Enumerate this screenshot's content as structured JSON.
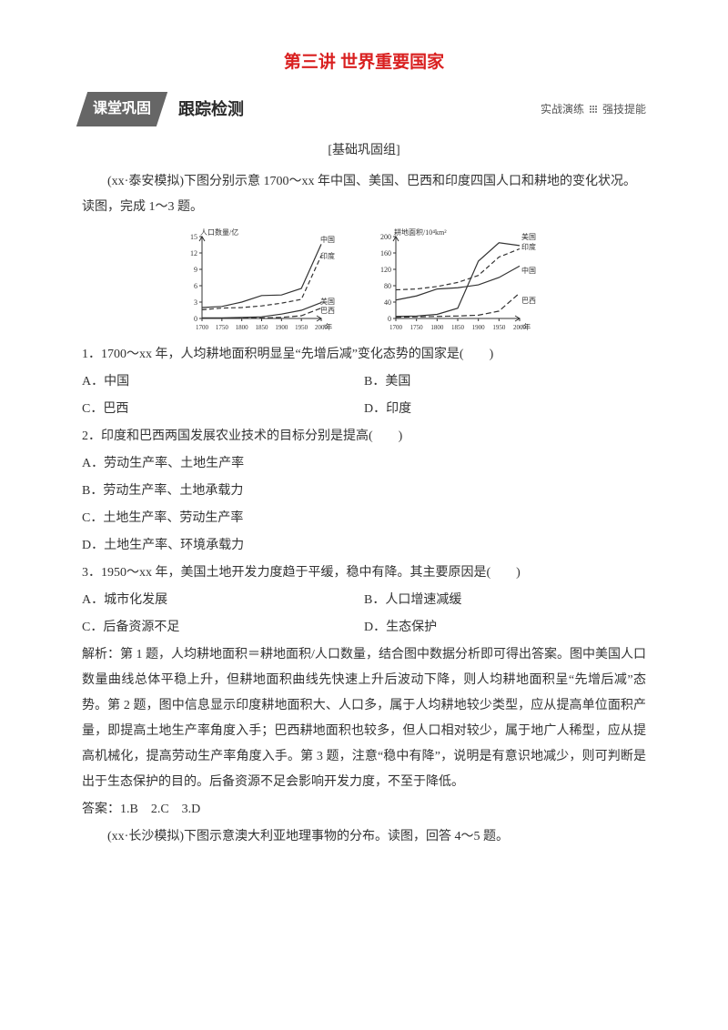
{
  "title": "第三讲 世界重要国家",
  "banner": {
    "tab": "课堂巩固",
    "subtitle": "跟踪检测",
    "right1": "实战演练",
    "right2": "强技提能"
  },
  "section_label": "[基础巩固组]",
  "intro1": "(xx·泰安模拟)下图分别示意 1700～xx 年中国、美国、巴西和印度四国人口和耕地的变化状况。读图，完成 1～3 题。",
  "chart_left": {
    "ylabel": "人口数量/亿",
    "xlabel": "年",
    "x_ticks": [
      "1700",
      "1750",
      "1800",
      "1850",
      "1900",
      "1950",
      "2000"
    ],
    "y_ticks": [
      "0",
      "3",
      "6",
      "9",
      "12",
      "15"
    ],
    "series": [
      {
        "name": "中国",
        "label_x": 158,
        "label_y": 18,
        "dash": "",
        "pts": [
          [
            0,
            2.0
          ],
          [
            1,
            2.2
          ],
          [
            2,
            3.0
          ],
          [
            3,
            4.2
          ],
          [
            4,
            4.3
          ],
          [
            5,
            5.5
          ],
          [
            6,
            13.6
          ]
        ]
      },
      {
        "name": "印度",
        "label_x": 158,
        "label_y": 36,
        "dash": "5,3",
        "pts": [
          [
            0,
            1.6
          ],
          [
            1,
            1.9
          ],
          [
            2,
            2.0
          ],
          [
            3,
            2.3
          ],
          [
            4,
            2.8
          ],
          [
            5,
            3.5
          ],
          [
            6,
            11.5
          ]
        ]
      },
      {
        "name": "美国",
        "label_x": 158,
        "label_y": 86,
        "dash": "",
        "pts": [
          [
            0,
            0.1
          ],
          [
            1,
            0.1
          ],
          [
            2,
            0.2
          ],
          [
            3,
            0.3
          ],
          [
            4,
            0.8
          ],
          [
            5,
            1.5
          ],
          [
            6,
            2.9
          ]
        ]
      },
      {
        "name": "巴西",
        "label_x": 158,
        "label_y": 96,
        "dash": "6,3",
        "pts": [
          [
            0,
            0.05
          ],
          [
            1,
            0.06
          ],
          [
            2,
            0.1
          ],
          [
            3,
            0.1
          ],
          [
            4,
            0.2
          ],
          [
            5,
            0.5
          ],
          [
            6,
            1.9
          ]
        ]
      }
    ],
    "axis_color": "#333",
    "line_color": "#333",
    "font_size": 8
  },
  "chart_right": {
    "ylabel": "耕地面积/10⁴km²",
    "xlabel": "年",
    "x_ticks": [
      "1700",
      "1750",
      "1800",
      "1850",
      "1900",
      "1950",
      "2000"
    ],
    "y_ticks": [
      "0",
      "40",
      "80",
      "120",
      "160",
      "200"
    ],
    "series": [
      {
        "name": "美国",
        "label_x": 166,
        "label_y": 15,
        "dash": "",
        "pts": [
          [
            0,
            5
          ],
          [
            1,
            6
          ],
          [
            2,
            10
          ],
          [
            3,
            25
          ],
          [
            4,
            140
          ],
          [
            5,
            185
          ],
          [
            6,
            178
          ]
        ]
      },
      {
        "name": "印度",
        "label_x": 166,
        "label_y": 26,
        "dash": "5,3",
        "pts": [
          [
            0,
            70
          ],
          [
            1,
            72
          ],
          [
            2,
            78
          ],
          [
            3,
            88
          ],
          [
            4,
            105
          ],
          [
            5,
            150
          ],
          [
            6,
            170
          ]
        ]
      },
      {
        "name": "中国",
        "label_x": 166,
        "label_y": 52,
        "dash": "",
        "pts": [
          [
            0,
            45
          ],
          [
            1,
            55
          ],
          [
            2,
            72
          ],
          [
            3,
            75
          ],
          [
            4,
            82
          ],
          [
            5,
            100
          ],
          [
            6,
            128
          ]
        ]
      },
      {
        "name": "巴西",
        "label_x": 166,
        "label_y": 85,
        "dash": "6,3",
        "pts": [
          [
            0,
            3
          ],
          [
            1,
            4
          ],
          [
            2,
            5
          ],
          [
            3,
            6
          ],
          [
            4,
            8
          ],
          [
            5,
            18
          ],
          [
            6,
            62
          ]
        ]
      }
    ],
    "axis_color": "#333",
    "line_color": "#333",
    "font_size": 8
  },
  "q1": {
    "stem": "1．1700～xx 年，人均耕地面积明显呈“先增后减”变化态势的国家是(　　)",
    "A": "A．中国",
    "B": "B．美国",
    "C": "C．巴西",
    "D": "D．印度"
  },
  "q2": {
    "stem": "2．印度和巴西两国发展农业技术的目标分别是提高(　　)",
    "A": "A．劳动生产率、土地生产率",
    "B": "B．劳动生产率、土地承载力",
    "C": "C．土地生产率、劳动生产率",
    "D": "D．土地生产率、环境承载力"
  },
  "q3": {
    "stem": "3．1950～xx 年，美国土地开发力度趋于平缓，稳中有降。其主要原因是(　　)",
    "A": "A．城市化发展",
    "B": "B．人口增速减缓",
    "C": "C．后备资源不足",
    "D": "D．生态保护"
  },
  "explain": "解析：第 1 题，人均耕地面积＝耕地面积/人口数量，结合图中数据分析即可得出答案。图中美国人口数量曲线总体平稳上升，但耕地面积曲线先快速上升后波动下降，则人均耕地面积呈“先增后减”态势。第 2 题，图中信息显示印度耕地面积大、人口多，属于人均耕地较少类型，应从提高单位面积产量，即提高土地生产率角度入手；巴西耕地面积也较多，但人口相对较少，属于地广人稀型，应从提高机械化，提高劳动生产率角度入手。第 3 题，注意“稳中有降”，说明是有意识地减少，则可判断是出于生态保护的目的。后备资源不足会影响开发力度，不至于降低。",
  "answer": "答案：1.B　2.C　3.D",
  "intro2": "(xx·长沙模拟)下图示意澳大利亚地理事物的分布。读图，回答 4～5 题。"
}
